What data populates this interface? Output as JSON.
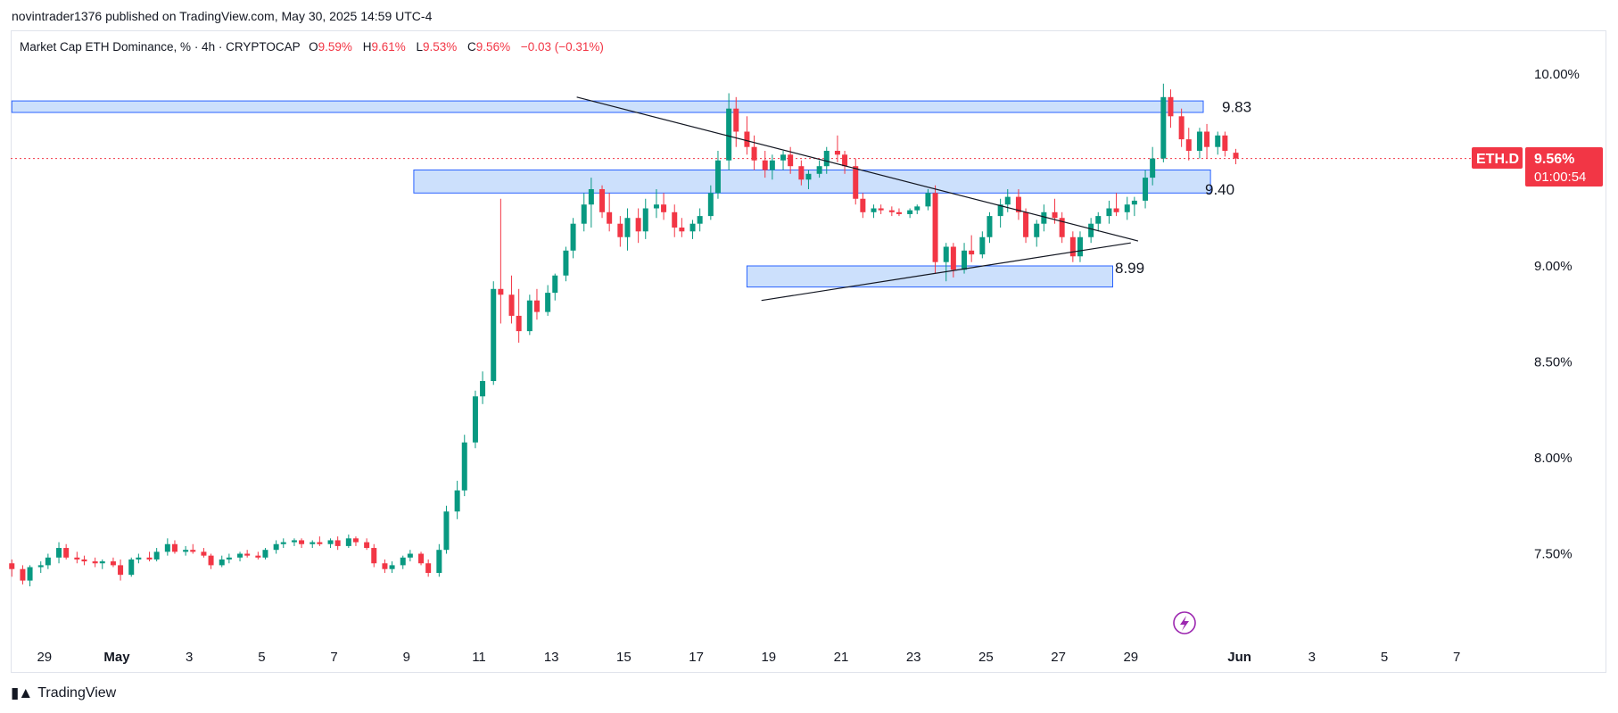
{
  "header": {
    "published_line": "novintrader1376 published on TradingView.com, May 30, 2025 14:59 UTC-4"
  },
  "legend": {
    "symbol_line": "Market Cap ETH Dominance, % · 4h · CRYPTOCAP",
    "open_label": "O",
    "open": "9.59%",
    "high_label": "H",
    "high": "9.61%",
    "low_label": "L",
    "low": "9.53%",
    "close_label": "C",
    "close": "9.56%",
    "change": "−0.03 (−0.31%)"
  },
  "price_tag": {
    "symbol": "ETH.D",
    "price": "9.56%",
    "countdown": "01:00:54"
  },
  "footer": {
    "brand": "TradingView"
  },
  "colors": {
    "up": "#26a69a",
    "up_candle": "#089981",
    "down": "#f23645",
    "zone_fill": "#bbd6fb",
    "zone_stroke": "#2962ff",
    "price_line": "#f23645",
    "trend_line": "#131722",
    "accent_icon": "#9c27b0"
  },
  "icons": {
    "flash": "flash-icon",
    "logo": "tradingview-logo-icon"
  },
  "chart_data": {
    "type": "candlestick",
    "title": "Market Cap ETH Dominance, % · 4h · CRYPTOCAP",
    "y_unit": "%",
    "ylim": [
      7.15,
      10.15
    ],
    "y_ticks": [
      "10.00%",
      "9.00%",
      "8.50%",
      "8.00%",
      "7.50%"
    ],
    "y_tick_values": [
      10.0,
      9.0,
      8.5,
      8.0,
      7.5
    ],
    "x_ticks": [
      "29",
      "May",
      "3",
      "5",
      "7",
      "9",
      "11",
      "13",
      "15",
      "17",
      "19",
      "21",
      "23",
      "25",
      "27",
      "29",
      "Jun",
      "3",
      "5",
      "7"
    ],
    "x_tick_days": [
      -2,
      0,
      2,
      4,
      6,
      8,
      10,
      12,
      14,
      16,
      18,
      20,
      22,
      24,
      26,
      28,
      31,
      33,
      35,
      37
    ],
    "last_price": 9.56,
    "levels": [
      {
        "label": "9.83",
        "value": 9.83,
        "top": 9.86,
        "bottom": 9.8,
        "from_day": -2.9,
        "to_day": 30.0
      },
      {
        "label": "9.40",
        "value": 9.4,
        "top": 9.5,
        "bottom": 9.38,
        "from_day": 8.2,
        "to_day": 30.2
      },
      {
        "label": "8.99",
        "value": 8.99,
        "top": 9.0,
        "bottom": 8.89,
        "from_day": 17.4,
        "to_day": 27.5
      }
    ],
    "trendlines": [
      {
        "from": [
          12.7,
          9.88
        ],
        "to": [
          28.2,
          9.13
        ]
      },
      {
        "from": [
          17.8,
          8.82
        ],
        "to": [
          28.0,
          9.12
        ]
      }
    ],
    "candles_4h_approx": [
      [
        -2.9,
        7.45,
        7.47,
        7.38,
        7.42
      ],
      [
        -2.6,
        7.42,
        7.44,
        7.34,
        7.36
      ],
      [
        -2.4,
        7.36,
        7.44,
        7.33,
        7.43
      ],
      [
        -2.1,
        7.43,
        7.46,
        7.4,
        7.44
      ],
      [
        -1.9,
        7.44,
        7.5,
        7.42,
        7.48
      ],
      [
        -1.6,
        7.48,
        7.56,
        7.45,
        7.53
      ],
      [
        -1.4,
        7.53,
        7.55,
        7.47,
        7.48
      ],
      [
        -1.1,
        7.48,
        7.51,
        7.45,
        7.47
      ],
      [
        -0.9,
        7.47,
        7.49,
        7.44,
        7.46
      ],
      [
        -0.6,
        7.46,
        7.48,
        7.43,
        7.45
      ],
      [
        -0.4,
        7.45,
        7.47,
        7.42,
        7.46
      ],
      [
        -0.1,
        7.46,
        7.48,
        7.43,
        7.44
      ],
      [
        0.1,
        7.44,
        7.47,
        7.36,
        7.39
      ],
      [
        0.4,
        7.39,
        7.48,
        7.38,
        7.47
      ],
      [
        0.6,
        7.47,
        7.5,
        7.45,
        7.48
      ],
      [
        0.9,
        7.48,
        7.51,
        7.46,
        7.47
      ],
      [
        1.1,
        7.47,
        7.53,
        7.46,
        7.51
      ],
      [
        1.4,
        7.51,
        7.58,
        7.49,
        7.55
      ],
      [
        1.6,
        7.55,
        7.57,
        7.5,
        7.51
      ],
      [
        1.9,
        7.51,
        7.54,
        7.49,
        7.52
      ],
      [
        2.1,
        7.52,
        7.55,
        7.5,
        7.51
      ],
      [
        2.4,
        7.51,
        7.53,
        7.48,
        7.49
      ],
      [
        2.6,
        7.49,
        7.5,
        7.42,
        7.44
      ],
      [
        2.9,
        7.44,
        7.49,
        7.43,
        7.47
      ],
      [
        3.1,
        7.47,
        7.5,
        7.45,
        7.48
      ],
      [
        3.4,
        7.48,
        7.51,
        7.46,
        7.5
      ],
      [
        3.6,
        7.5,
        7.52,
        7.48,
        7.49
      ],
      [
        3.9,
        7.49,
        7.51,
        7.47,
        7.48
      ],
      [
        4.1,
        7.48,
        7.53,
        7.47,
        7.52
      ],
      [
        4.4,
        7.52,
        7.57,
        7.5,
        7.55
      ],
      [
        4.6,
        7.55,
        7.58,
        7.53,
        7.56
      ],
      [
        4.9,
        7.56,
        7.58,
        7.54,
        7.57
      ],
      [
        5.1,
        7.57,
        7.58,
        7.53,
        7.55
      ],
      [
        5.4,
        7.55,
        7.57,
        7.53,
        7.56
      ],
      [
        5.6,
        7.56,
        7.59,
        7.54,
        7.55
      ],
      [
        5.9,
        7.55,
        7.58,
        7.53,
        7.57
      ],
      [
        6.1,
        7.57,
        7.59,
        7.52,
        7.54
      ],
      [
        6.4,
        7.54,
        7.6,
        7.53,
        7.58
      ],
      [
        6.6,
        7.58,
        7.59,
        7.54,
        7.56
      ],
      [
        6.9,
        7.56,
        7.58,
        7.52,
        7.53
      ],
      [
        7.1,
        7.53,
        7.55,
        7.43,
        7.45
      ],
      [
        7.4,
        7.45,
        7.47,
        7.4,
        7.42
      ],
      [
        7.6,
        7.42,
        7.46,
        7.4,
        7.44
      ],
      [
        7.9,
        7.44,
        7.49,
        7.42,
        7.48
      ],
      [
        8.1,
        7.48,
        7.52,
        7.46,
        7.5
      ],
      [
        8.4,
        7.5,
        7.51,
        7.44,
        7.45
      ],
      [
        8.6,
        7.45,
        7.47,
        7.38,
        7.4
      ],
      [
        8.9,
        7.4,
        7.55,
        7.38,
        7.52
      ],
      [
        9.1,
        7.52,
        7.75,
        7.5,
        7.72
      ],
      [
        9.4,
        7.72,
        7.88,
        7.68,
        7.83
      ],
      [
        9.6,
        7.83,
        8.12,
        7.8,
        8.08
      ],
      [
        9.9,
        8.08,
        8.35,
        8.05,
        8.32
      ],
      [
        10.1,
        8.32,
        8.45,
        8.28,
        8.4
      ],
      [
        10.4,
        8.4,
        8.92,
        8.38,
        8.88
      ],
      [
        10.6,
        8.88,
        9.35,
        8.7,
        8.85
      ],
      [
        10.9,
        8.85,
        8.95,
        8.7,
        8.74
      ],
      [
        11.1,
        8.74,
        8.88,
        8.6,
        8.66
      ],
      [
        11.4,
        8.66,
        8.85,
        8.64,
        8.82
      ],
      [
        11.6,
        8.82,
        8.88,
        8.72,
        8.76
      ],
      [
        11.9,
        8.76,
        8.9,
        8.74,
        8.86
      ],
      [
        12.1,
        8.86,
        8.96,
        8.82,
        8.95
      ],
      [
        12.4,
        8.95,
        9.1,
        8.92,
        9.08
      ],
      [
        12.6,
        9.08,
        9.25,
        9.04,
        9.22
      ],
      [
        12.9,
        9.22,
        9.38,
        9.18,
        9.32
      ],
      [
        13.1,
        9.32,
        9.46,
        9.2,
        9.4
      ],
      [
        13.4,
        9.4,
        9.42,
        9.25,
        9.28
      ],
      [
        13.6,
        9.28,
        9.38,
        9.18,
        9.22
      ],
      [
        13.9,
        9.22,
        9.26,
        9.1,
        9.15
      ],
      [
        14.1,
        9.15,
        9.3,
        9.08,
        9.25
      ],
      [
        14.4,
        9.25,
        9.3,
        9.12,
        9.18
      ],
      [
        14.6,
        9.18,
        9.35,
        9.14,
        9.3
      ],
      [
        14.9,
        9.3,
        9.4,
        9.25,
        9.32
      ],
      [
        15.1,
        9.32,
        9.38,
        9.24,
        9.28
      ],
      [
        15.4,
        9.28,
        9.32,
        9.15,
        9.2
      ],
      [
        15.6,
        9.2,
        9.25,
        9.15,
        9.18
      ],
      [
        15.9,
        9.18,
        9.24,
        9.14,
        9.22
      ],
      [
        16.1,
        9.22,
        9.3,
        9.18,
        9.26
      ],
      [
        16.4,
        9.26,
        9.42,
        9.24,
        9.38
      ],
      [
        16.6,
        9.38,
        9.6,
        9.35,
        9.55
      ],
      [
        16.9,
        9.55,
        9.9,
        9.5,
        9.82
      ],
      [
        17.1,
        9.82,
        9.88,
        9.62,
        9.7
      ],
      [
        17.4,
        9.7,
        9.78,
        9.58,
        9.62
      ],
      [
        17.6,
        9.62,
        9.68,
        9.5,
        9.55
      ],
      [
        17.9,
        9.55,
        9.6,
        9.46,
        9.5
      ],
      [
        18.1,
        9.5,
        9.58,
        9.45,
        9.55
      ],
      [
        18.4,
        9.55,
        9.6,
        9.5,
        9.58
      ],
      [
        18.6,
        9.58,
        9.62,
        9.48,
        9.52
      ],
      [
        18.9,
        9.52,
        9.55,
        9.42,
        9.45
      ],
      [
        19.1,
        9.45,
        9.5,
        9.4,
        9.48
      ],
      [
        19.4,
        9.48,
        9.55,
        9.46,
        9.52
      ],
      [
        19.6,
        9.52,
        9.62,
        9.48,
        9.6
      ],
      [
        19.9,
        9.6,
        9.68,
        9.54,
        9.58
      ],
      [
        20.1,
        9.58,
        9.6,
        9.48,
        9.52
      ],
      [
        20.4,
        9.52,
        9.56,
        9.32,
        9.35
      ],
      [
        20.6,
        9.35,
        9.38,
        9.25,
        9.28
      ],
      [
        20.9,
        9.28,
        9.32,
        9.25,
        9.3
      ],
      [
        21.1,
        9.3,
        9.32,
        9.27,
        9.29
      ],
      [
        21.4,
        9.29,
        9.31,
        9.26,
        9.28
      ],
      [
        21.6,
        9.28,
        9.3,
        9.26,
        9.27
      ],
      [
        21.9,
        9.27,
        9.3,
        9.25,
        9.29
      ],
      [
        22.1,
        9.29,
        9.32,
        9.27,
        9.31
      ],
      [
        22.4,
        9.31,
        9.4,
        9.29,
        9.38
      ],
      [
        22.6,
        9.38,
        9.42,
        8.96,
        9.02
      ],
      [
        22.9,
        9.02,
        9.12,
        8.92,
        9.1
      ],
      [
        23.1,
        9.1,
        9.12,
        8.94,
        8.98
      ],
      [
        23.4,
        8.98,
        9.12,
        8.96,
        9.08
      ],
      [
        23.6,
        9.08,
        9.16,
        9.02,
        9.06
      ],
      [
        23.9,
        9.06,
        9.18,
        9.04,
        9.15
      ],
      [
        24.1,
        9.15,
        9.28,
        9.12,
        9.26
      ],
      [
        24.4,
        9.26,
        9.35,
        9.2,
        9.32
      ],
      [
        24.6,
        9.32,
        9.4,
        9.28,
        9.36
      ],
      [
        24.9,
        9.36,
        9.4,
        9.24,
        9.28
      ],
      [
        25.1,
        9.28,
        9.3,
        9.12,
        9.15
      ],
      [
        25.4,
        9.15,
        9.24,
        9.1,
        9.22
      ],
      [
        25.6,
        9.22,
        9.32,
        9.18,
        9.28
      ],
      [
        25.9,
        9.28,
        9.35,
        9.22,
        9.25
      ],
      [
        26.1,
        9.25,
        9.28,
        9.12,
        9.15
      ],
      [
        26.4,
        9.15,
        9.18,
        9.02,
        9.05
      ],
      [
        26.6,
        9.05,
        9.18,
        9.02,
        9.15
      ],
      [
        26.9,
        9.15,
        9.25,
        9.12,
        9.22
      ],
      [
        27.1,
        9.22,
        9.28,
        9.18,
        9.26
      ],
      [
        27.4,
        9.26,
        9.34,
        9.22,
        9.3
      ],
      [
        27.6,
        9.3,
        9.38,
        9.26,
        9.28
      ]
    ]
  }
}
